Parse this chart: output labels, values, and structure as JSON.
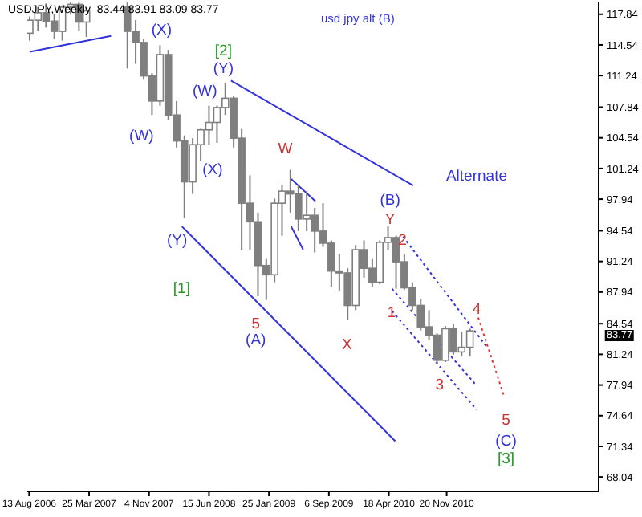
{
  "chart_data": {
    "type": "candlestick",
    "title": "USDJPY,Weekly  83.44 83.91 83.09 83.77",
    "subtitle": "usd jpy alt (B)",
    "color": "#7f7f7f",
    "x": [
      "2006-08-15",
      "2006-09-15",
      "2006-10-15",
      "2006-11-15",
      "2006-12-15",
      "2007-01-15",
      "2007-02-15",
      "2007-03-15",
      "2007-08-15",
      "2007-09-15",
      "2007-10-15",
      "2007-11-15",
      "2007-12-15",
      "2008-01-15",
      "2008-02-15",
      "2008-03-15",
      "2008-04-15",
      "2008-05-15",
      "2008-06-15",
      "2008-07-15",
      "2008-08-15",
      "2008-09-15",
      "2008-10-15",
      "2008-11-15",
      "2008-12-15",
      "2009-01-15",
      "2009-02-15",
      "2009-03-15",
      "2009-04-15",
      "2009-05-15",
      "2009-06-15",
      "2009-07-15",
      "2009-08-15",
      "2009-09-15",
      "2009-10-15",
      "2009-11-15",
      "2009-12-15",
      "2010-01-15",
      "2010-02-15",
      "2010-03-15",
      "2010-04-15",
      "2010-05-15",
      "2010-06-15",
      "2010-07-15",
      "2010-08-15",
      "2010-09-15",
      "2010-10-15",
      "2010-11-15",
      "2010-12-15",
      "2011-01-15",
      "2011-02-15"
    ],
    "ohlc": [
      [
        115.8,
        117.6,
        115.0,
        117.2
      ],
      [
        117.2,
        118.6,
        116.0,
        118.0
      ],
      [
        118.0,
        119.0,
        116.4,
        117.1
      ],
      [
        117.1,
        117.9,
        115.2,
        116.0
      ],
      [
        116.0,
        118.8,
        115.0,
        118.6
      ],
      [
        118.6,
        119.1,
        117.8,
        118.9
      ],
      [
        118.9,
        119.1,
        116.0,
        117.0
      ],
      [
        117.0,
        118.6,
        115.4,
        118.2
      ],
      [
        118.6,
        119.1,
        112.0,
        116.0
      ],
      [
        116.0,
        117.2,
        112.5,
        114.8
      ],
      [
        114.8,
        115.2,
        110.8,
        111.2
      ],
      [
        111.2,
        111.5,
        107.0,
        108.5
      ],
      [
        108.5,
        114.5,
        108.0,
        113.5
      ],
      [
        113.5,
        114.0,
        106.5,
        107.0
      ],
      [
        107.0,
        108.5,
        103.5,
        104.2
      ],
      [
        104.2,
        104.8,
        95.9,
        99.8
      ],
      [
        99.8,
        104.5,
        98.5,
        103.8
      ],
      [
        103.8,
        105.5,
        102.0,
        105.4
      ],
      [
        105.4,
        108.0,
        103.8,
        106.2
      ],
      [
        106.2,
        108.0,
        104.0,
        107.8
      ],
      [
        107.8,
        110.4,
        107.0,
        108.8
      ],
      [
        108.8,
        109.0,
        103.5,
        104.5
      ],
      [
        104.5,
        105.5,
        92.5,
        97.5
      ],
      [
        97.5,
        100.5,
        92.5,
        95.5
      ],
      [
        95.5,
        96.5,
        87.5,
        90.8
      ],
      [
        90.8,
        91.5,
        87.1,
        89.8
      ],
      [
        89.8,
        98.0,
        89.0,
        97.5
      ],
      [
        97.5,
        99.5,
        94.0,
        98.8
      ],
      [
        98.8,
        101.1,
        96.5,
        98.5
      ],
      [
        98.5,
        99.5,
        94.5,
        95.8
      ],
      [
        95.8,
        98.8,
        94.5,
        96.2
      ],
      [
        96.2,
        97.0,
        92.2,
        94.5
      ],
      [
        94.5,
        97.5,
        92.8,
        93.2
      ],
      [
        93.2,
        93.5,
        88.5,
        90.2
      ],
      [
        90.2,
        92.0,
        88.0,
        90.0
      ],
      [
        90.0,
        90.5,
        84.9,
        86.5
      ],
      [
        86.5,
        93.0,
        86.0,
        92.5
      ],
      [
        92.5,
        93.5,
        89.5,
        90.5
      ],
      [
        90.5,
        91.5,
        88.5,
        89.0
      ],
      [
        89.0,
        93.5,
        88.8,
        93.3
      ],
      [
        93.3,
        95.0,
        92.5,
        93.8
      ],
      [
        93.8,
        94.0,
        88.3,
        91.2
      ],
      [
        91.2,
        92.0,
        88.2,
        88.4
      ],
      [
        88.4,
        89.0,
        86.0,
        86.5
      ],
      [
        86.5,
        87.2,
        83.8,
        84.2
      ],
      [
        84.2,
        86.0,
        82.8,
        83.3
      ],
      [
        83.3,
        83.5,
        80.3,
        80.6
      ],
      [
        80.6,
        84.3,
        80.4,
        84.0
      ],
      [
        84.0,
        84.5,
        81.2,
        81.5
      ],
      [
        81.5,
        83.7,
        81.0,
        82.0
      ],
      [
        82.0,
        84.0,
        81.0,
        83.77
      ]
    ],
    "series": [
      {
        "type": "line",
        "color": "#3333dd",
        "line_style": "solid",
        "x": [
          "2006-08-15",
          "2007-06-15"
        ],
        "values": [
          113.8,
          115.5
        ]
      },
      {
        "type": "line",
        "color": "#3333dd",
        "line_style": "solid",
        "x": [
          "2008-09-05",
          "2010-07-18"
        ],
        "values": [
          110.7,
          99.4
        ]
      },
      {
        "type": "line",
        "color": "#3333dd",
        "line_style": "solid",
        "x": [
          "2008-03-06",
          "2010-05-12"
        ],
        "values": [
          95.0,
          71.9
        ]
      },
      {
        "type": "line",
        "color": "#3333dd",
        "line_style": "solid",
        "x": [
          "2009-04-18",
          "2009-07-18"
        ],
        "values": [
          100.1,
          97.7
        ]
      },
      {
        "type": "line",
        "color": "#3333dd",
        "line_style": "solid",
        "x": [
          "2009-04-18",
          "2009-06-02"
        ],
        "values": [
          95.0,
          92.5
        ]
      },
      {
        "type": "line",
        "color": "#3333dd",
        "line_style": "dotted",
        "x": [
          "2010-06-10",
          "2011-04-20"
        ],
        "values": [
          93.9,
          82.0
        ]
      },
      {
        "type": "line",
        "color": "#3333dd",
        "line_style": "dotted",
        "x": [
          "2010-04-30",
          "2011-03-05"
        ],
        "values": [
          88.3,
          78.1
        ]
      },
      {
        "type": "line",
        "color": "#3333dd",
        "line_style": "dotted",
        "x": [
          "2010-04-30",
          "2011-03-12"
        ],
        "values": [
          85.9,
          75.3
        ]
      },
      {
        "type": "line",
        "color": "#ee3333",
        "line_style": "dotted",
        "x": [
          "2011-03-18",
          "2011-06-24"
        ],
        "values": [
          85.2,
          76.6
        ]
      }
    ],
    "annotations": [
      "(X)",
      "[2]",
      "(Y)",
      "(W)",
      "(W)",
      "(X)",
      "(Y)",
      "[1]",
      "5",
      "(A)",
      "W",
      "X",
      "(B)",
      "Y",
      "2",
      "1",
      "3",
      "4",
      "5",
      "(C)",
      "[3]",
      "Alternate",
      "83.77"
    ],
    "xlim": [
      "2006-08-06",
      "2012-06-10"
    ],
    "xticks": [
      {
        "value": "2006-08-13",
        "label": "13 Aug 2006"
      },
      {
        "value": "2007-03-25",
        "label": "25 Mar 2007"
      },
      {
        "value": "2007-11-04",
        "label": "4 Nov 2007"
      },
      {
        "value": "2008-06-15",
        "label": "15 Jun 2008"
      },
      {
        "value": "2009-01-25",
        "label": "25 Jan 2009"
      },
      {
        "value": "2009-09-06",
        "label": "6 Sep 2009"
      },
      {
        "value": "2010-04-18",
        "label": "18 Apr 2010"
      },
      {
        "value": "2010-11-20",
        "label": "20 Nov 2010"
      }
    ],
    "ylim": [
      66.5,
      119.2
    ],
    "yticks": [
      68.04,
      71.34,
      74.64,
      77.94,
      81.24,
      84.54,
      87.94,
      91.24,
      94.54,
      97.94,
      101.24,
      104.54,
      107.84,
      111.24,
      114.54,
      117.84
    ]
  }
}
